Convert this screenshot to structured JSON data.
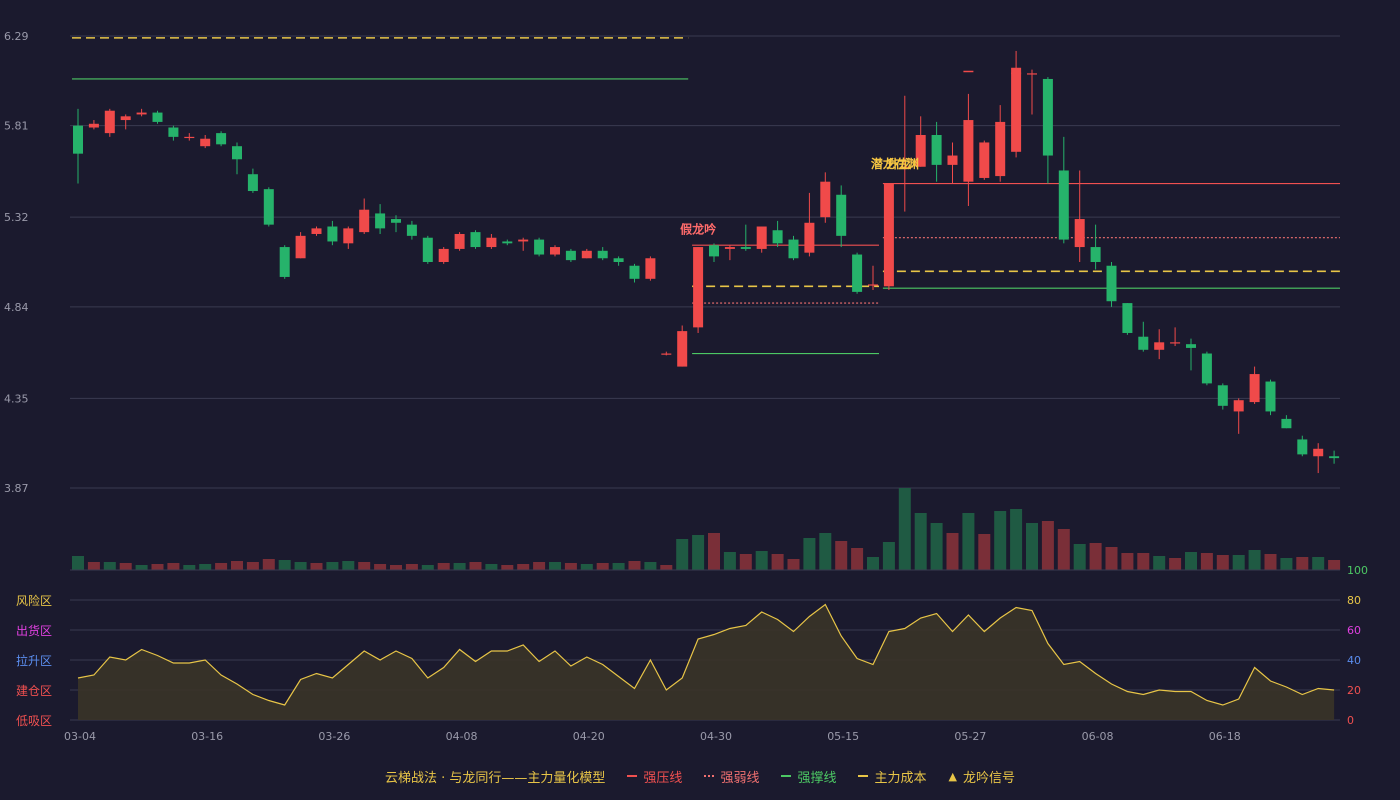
{
  "chart_data": [
    {
      "type": "candlestick",
      "ylim": [
        3.87,
        6.29
      ],
      "ytick_labels": [
        "6.29",
        "5.81",
        "5.32",
        "4.84",
        "4.35",
        "3.87"
      ],
      "candles": [
        [
          5.81,
          5.66,
          5.9,
          5.5
        ],
        [
          5.8,
          5.82,
          5.84,
          5.79
        ],
        [
          5.77,
          5.89,
          5.9,
          5.75
        ],
        [
          5.84,
          5.86,
          5.87,
          5.79
        ],
        [
          5.87,
          5.88,
          5.9,
          5.86
        ],
        [
          5.88,
          5.83,
          5.89,
          5.82
        ],
        [
          5.8,
          5.75,
          5.81,
          5.73
        ],
        [
          5.75,
          5.75,
          5.77,
          5.73
        ],
        [
          5.7,
          5.74,
          5.76,
          5.69
        ],
        [
          5.77,
          5.71,
          5.78,
          5.7
        ],
        [
          5.7,
          5.63,
          5.72,
          5.55
        ],
        [
          5.55,
          5.46,
          5.58,
          5.45
        ],
        [
          5.47,
          5.28,
          5.48,
          5.27
        ],
        [
          5.16,
          5.0,
          5.17,
          4.99
        ],
        [
          5.1,
          5.22,
          5.24,
          5.1
        ],
        [
          5.23,
          5.26,
          5.27,
          5.22
        ],
        [
          5.27,
          5.19,
          5.3,
          5.17
        ],
        [
          5.18,
          5.26,
          5.27,
          5.15
        ],
        [
          5.24,
          5.36,
          5.42,
          5.23
        ],
        [
          5.34,
          5.26,
          5.39,
          5.23
        ],
        [
          5.31,
          5.29,
          5.33,
          5.24
        ],
        [
          5.28,
          5.22,
          5.3,
          5.2
        ],
        [
          5.21,
          5.08,
          5.22,
          5.07
        ],
        [
          5.08,
          5.15,
          5.16,
          5.07
        ],
        [
          5.15,
          5.23,
          5.24,
          5.14
        ],
        [
          5.24,
          5.16,
          5.25,
          5.15
        ],
        [
          5.16,
          5.21,
          5.23,
          5.15
        ],
        [
          5.19,
          5.18,
          5.2,
          5.17
        ],
        [
          5.19,
          5.2,
          5.21,
          5.14
        ],
        [
          5.2,
          5.12,
          5.21,
          5.11
        ],
        [
          5.12,
          5.16,
          5.17,
          5.11
        ],
        [
          5.14,
          5.09,
          5.15,
          5.08
        ],
        [
          5.1,
          5.14,
          5.15,
          5.1
        ],
        [
          5.14,
          5.1,
          5.16,
          5.09
        ],
        [
          5.1,
          5.08,
          5.11,
          5.06
        ],
        [
          5.06,
          4.99,
          5.07,
          4.97
        ],
        [
          4.99,
          5.1,
          5.11,
          4.98
        ],
        [
          4.59,
          4.59,
          4.6,
          4.58
        ],
        [
          4.52,
          4.71,
          4.74,
          4.52
        ],
        [
          4.73,
          5.16,
          5.16,
          4.7
        ],
        [
          5.17,
          5.11,
          5.18,
          5.08
        ],
        [
          5.15,
          5.16,
          5.17,
          5.09
        ],
        [
          5.16,
          5.15,
          5.28,
          5.14
        ],
        [
          5.15,
          5.27,
          5.27,
          5.13
        ],
        [
          5.25,
          5.18,
          5.3,
          5.16
        ],
        [
          5.2,
          5.1,
          5.22,
          5.09
        ],
        [
          5.13,
          5.29,
          5.45,
          5.11
        ],
        [
          5.32,
          5.51,
          5.56,
          5.29
        ],
        [
          5.44,
          5.22,
          5.49,
          5.16
        ],
        [
          5.12,
          4.92,
          5.13,
          4.91
        ],
        [
          4.96,
          4.96,
          5.06,
          4.93
        ],
        [
          4.95,
          5.5,
          5.5,
          4.93
        ],
        [
          5.59,
          5.59,
          5.97,
          5.35
        ],
        [
          5.59,
          5.76,
          5.86,
          5.59
        ],
        [
          5.76,
          5.6,
          5.83,
          5.51
        ],
        [
          5.6,
          5.65,
          5.72,
          5.5
        ],
        [
          5.51,
          5.84,
          5.98,
          5.38
        ],
        [
          5.53,
          5.72,
          5.73,
          5.52
        ],
        [
          5.54,
          5.83,
          5.92,
          5.51
        ],
        [
          5.67,
          6.12,
          6.21,
          5.64
        ],
        [
          6.09,
          6.09,
          6.11,
          5.87
        ],
        [
          6.06,
          5.65,
          6.07,
          5.5
        ],
        [
          5.57,
          5.2,
          5.75,
          5.18
        ],
        [
          5.16,
          5.31,
          5.57,
          5.08
        ],
        [
          5.16,
          5.08,
          5.28,
          5.04
        ],
        [
          5.06,
          4.87,
          5.08,
          4.84
        ],
        [
          4.86,
          4.7,
          4.86,
          4.69
        ],
        [
          4.68,
          4.61,
          4.76,
          4.6
        ],
        [
          4.61,
          4.65,
          4.72,
          4.56
        ],
        [
          4.65,
          4.65,
          4.73,
          4.63
        ],
        [
          4.64,
          4.62,
          4.67,
          4.5
        ],
        [
          4.59,
          4.43,
          4.6,
          4.42
        ],
        [
          4.42,
          4.31,
          4.43,
          4.29
        ],
        [
          4.28,
          4.34,
          4.35,
          4.16
        ],
        [
          4.33,
          4.48,
          4.52,
          4.32
        ],
        [
          4.44,
          4.28,
          4.45,
          4.26
        ],
        [
          4.24,
          4.19,
          4.26,
          4.19
        ],
        [
          4.13,
          4.05,
          4.15,
          4.04
        ],
        [
          4.04,
          4.08,
          4.11,
          3.95
        ],
        [
          4.04,
          4.03,
          4.07,
          4.0
        ]
      ],
      "volume": [
        [
          14,
          "d"
        ],
        [
          8,
          "r"
        ],
        [
          8,
          "d"
        ],
        [
          7,
          "r"
        ],
        [
          5,
          "d"
        ],
        [
          6,
          "r"
        ],
        [
          7,
          "r"
        ],
        [
          5,
          "d"
        ],
        [
          6,
          "d"
        ],
        [
          7,
          "r"
        ],
        [
          9,
          "r"
        ],
        [
          8,
          "r"
        ],
        [
          11,
          "r"
        ],
        [
          10,
          "d"
        ],
        [
          8,
          "d"
        ],
        [
          7,
          "r"
        ],
        [
          8,
          "d"
        ],
        [
          9,
          "d"
        ],
        [
          8,
          "r"
        ],
        [
          6,
          "r"
        ],
        [
          5,
          "r"
        ],
        [
          6,
          "r"
        ],
        [
          5,
          "d"
        ],
        [
          7,
          "r"
        ],
        [
          7,
          "d"
        ],
        [
          8,
          "r"
        ],
        [
          6,
          "d"
        ],
        [
          5,
          "r"
        ],
        [
          6,
          "r"
        ],
        [
          8,
          "r"
        ],
        [
          8,
          "d"
        ],
        [
          7,
          "r"
        ],
        [
          6,
          "d"
        ],
        [
          7,
          "r"
        ],
        [
          7,
          "d"
        ],
        [
          9,
          "r"
        ],
        [
          8,
          "d"
        ],
        [
          5,
          "r"
        ],
        [
          31,
          "d"
        ],
        [
          35,
          "d"
        ],
        [
          37,
          "r"
        ],
        [
          18,
          "d"
        ],
        [
          16,
          "r"
        ],
        [
          19,
          "d"
        ],
        [
          16,
          "r"
        ],
        [
          11,
          "r"
        ],
        [
          32,
          "d"
        ],
        [
          37,
          "d"
        ],
        [
          29,
          "r"
        ],
        [
          22,
          "r"
        ],
        [
          13,
          "d"
        ],
        [
          28,
          "d"
        ],
        [
          82,
          "d"
        ],
        [
          57,
          "d"
        ],
        [
          47,
          "d"
        ],
        [
          37,
          "r"
        ],
        [
          57,
          "d"
        ],
        [
          36,
          "r"
        ],
        [
          59,
          "d"
        ],
        [
          61,
          "d"
        ],
        [
          47,
          "d"
        ],
        [
          49,
          "r"
        ],
        [
          41,
          "r"
        ],
        [
          26,
          "d"
        ],
        [
          27,
          "r"
        ],
        [
          23,
          "r"
        ],
        [
          17,
          "r"
        ],
        [
          17,
          "r"
        ],
        [
          14,
          "d"
        ],
        [
          12,
          "r"
        ],
        [
          18,
          "d"
        ],
        [
          17,
          "r"
        ],
        [
          15,
          "r"
        ],
        [
          15,
          "d"
        ],
        [
          20,
          "d"
        ],
        [
          16,
          "r"
        ],
        [
          12,
          "d"
        ],
        [
          13,
          "r"
        ],
        [
          13,
          "d"
        ],
        [
          10,
          "r"
        ]
      ],
      "annotations": [
        {
          "text": "假龙吟",
          "color": "#ff6b6b",
          "candle": 39,
          "price": 5.2
        },
        {
          "text": "潜龙在渊",
          "color": "#f5c542",
          "candle": 51,
          "price": 5.55
        },
        {
          "text": "升龙",
          "color": "#f5c542",
          "candle": 52,
          "price": 5.55
        }
      ],
      "levels": [
        {
          "kind": "cost",
          "price": 6.28,
          "from": 0,
          "to": 38,
          "color": "#e8c547",
          "dash": "9 5"
        },
        {
          "kind": "support",
          "price": 6.06,
          "from": 0,
          "to": 38,
          "color": "#4cc864"
        },
        {
          "kind": "pressure",
          "price": 5.17,
          "from": 39,
          "to": 50,
          "color": "#f05050"
        },
        {
          "kind": "cost",
          "price": 4.95,
          "from": 39,
          "to": 50,
          "color": "#e8c547",
          "dash": "9 5"
        },
        {
          "kind": "weak",
          "price": 4.86,
          "from": 39,
          "to": 50,
          "color": "#f07070",
          "dash": "2 2"
        },
        {
          "kind": "support",
          "price": 4.59,
          "from": 39,
          "to": 50,
          "color": "#4cc864"
        },
        {
          "kind": "pressure",
          "price": 5.5,
          "from": 51,
          "to": 79,
          "color": "#f05050"
        },
        {
          "kind": "weak",
          "price": 5.21,
          "from": 51,
          "to": 79,
          "color": "#f07070",
          "dash": "2 2"
        },
        {
          "kind": "cost",
          "price": 5.03,
          "from": 51,
          "to": 79,
          "color": "#e8c547",
          "dash": "9 5"
        },
        {
          "kind": "support",
          "price": 4.94,
          "from": 51,
          "to": 79,
          "color": "#4cc864"
        }
      ],
      "extra_ticks": [
        {
          "candle": 56,
          "price": 6.1
        },
        {
          "candle": 59,
          "price": 6.09
        }
      ]
    },
    {
      "type": "area",
      "ylim": [
        0,
        100
      ],
      "ytick_labels": [
        "100",
        "80",
        "60",
        "40",
        "20",
        "0"
      ],
      "zones": [
        {
          "label": "风险区",
          "value": 80,
          "color": "#e8c547"
        },
        {
          "label": "出货区",
          "value": 60,
          "color": "#e040e0"
        },
        {
          "label": "拉升区",
          "value": 40,
          "color": "#5b8def"
        },
        {
          "label": "建仓区",
          "value": 20,
          "color": "#f05050"
        },
        {
          "label": "低吸区",
          "value": 0,
          "color": "#f05050"
        }
      ],
      "values": [
        28,
        30,
        42,
        40,
        47,
        43,
        38,
        38,
        40,
        30,
        24,
        17,
        13,
        10,
        27,
        31,
        28,
        37,
        46,
        40,
        46,
        41,
        28,
        35,
        47,
        39,
        46,
        46,
        50,
        39,
        46,
        36,
        42,
        37,
        29,
        21,
        40,
        20,
        28,
        54,
        57,
        61,
        63,
        72,
        67,
        59,
        69,
        77,
        56,
        41,
        37,
        59,
        61,
        68,
        71,
        59,
        70,
        59,
        68,
        75,
        73,
        51,
        37,
        39,
        31,
        24,
        19,
        17,
        20,
        19,
        19,
        13,
        10,
        14,
        35,
        26,
        22,
        17,
        21,
        20
      ],
      "line_color": "#e8c547"
    }
  ],
  "x_axis": {
    "tick_labels": [
      "03-04",
      "03-16",
      "03-26",
      "04-08",
      "04-20",
      "04-30",
      "05-15",
      "05-27",
      "06-08",
      "06-18"
    ],
    "tick_candles": [
      0,
      8,
      16,
      24,
      32,
      40,
      48,
      56,
      64,
      72
    ]
  },
  "colors": {
    "background": "#1b1a2e",
    "up": "#f04a4a",
    "down": "#26b36b",
    "vol_up": "#7a2f38",
    "vol_down": "#1f5a43",
    "grid": "#3a3a50",
    "axis_text": "#9a9aaa",
    "right_axis_text": "#f05050",
    "right_axis_top": "#4cc864",
    "area_fill": "#3a3428"
  },
  "legend": {
    "title": "云梯战法 · 与龙同行——主力量化模型",
    "items": [
      {
        "label": "强压线",
        "color": "#f05050",
        "style": "solid"
      },
      {
        "label": "强弱线",
        "color": "#f07070",
        "style": "dotted"
      },
      {
        "label": "强撑线",
        "color": "#4cc864",
        "style": "solid"
      },
      {
        "label": "主力成本",
        "color": "#e8c547",
        "style": "dashed"
      },
      {
        "label": "龙吟信号",
        "color": "#e8c547",
        "style": "triangle"
      }
    ]
  }
}
